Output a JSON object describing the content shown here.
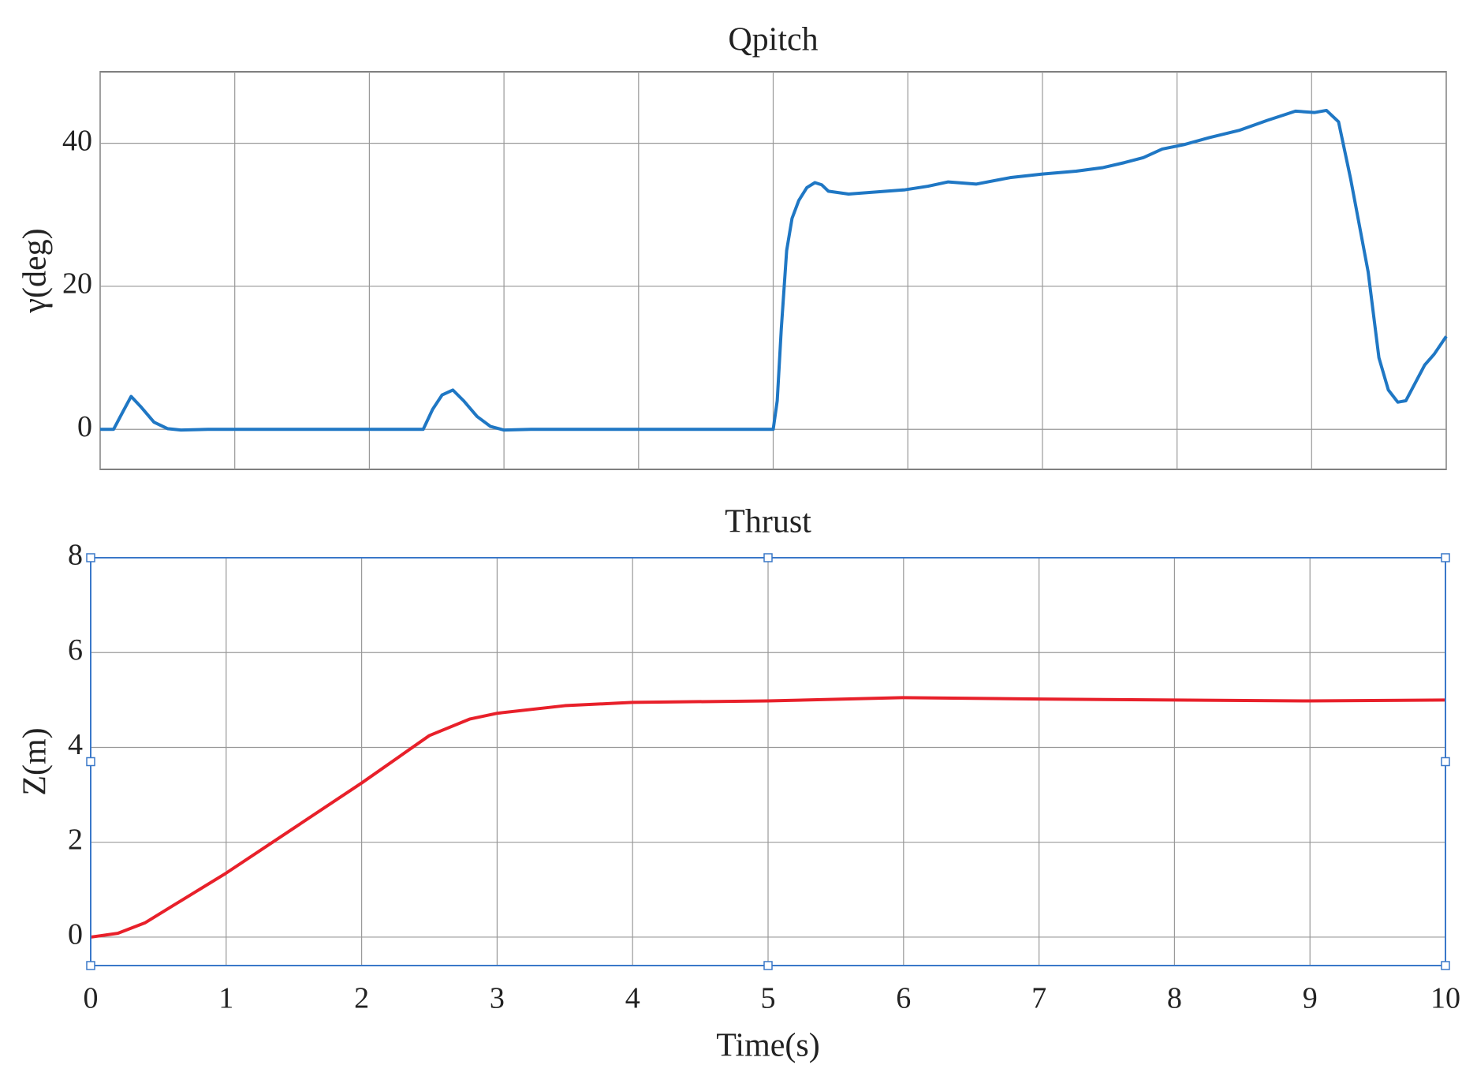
{
  "chart_data": [
    {
      "type": "line",
      "title": "Qpitch",
      "ylabel": "γ(deg)",
      "xlim": [
        0,
        10
      ],
      "xticks": [
        0,
        1,
        2,
        3,
        4,
        5,
        6,
        7,
        8,
        9,
        10
      ],
      "show_xtick_labels": false,
      "ylim": [
        -5.6,
        50
      ],
      "yticks": [
        0,
        20,
        40
      ],
      "grid": true,
      "series": [
        {
          "name": "Qpitch",
          "color": "#1f77c4",
          "x": [
            0,
            0.1,
            0.17,
            0.23,
            0.3,
            0.4,
            0.5,
            0.6,
            0.8,
            1,
            2,
            2.4,
            2.47,
            2.54,
            2.62,
            2.7,
            2.8,
            2.9,
            3.0,
            3.2,
            4,
            5,
            5.03,
            5.06,
            5.1,
            5.14,
            5.19,
            5.25,
            5.31,
            5.36,
            5.41,
            5.56,
            5.84,
            5.98,
            6.15,
            6.3,
            6.51,
            6.76,
            7.0,
            7.25,
            7.45,
            7.61,
            7.75,
            7.89,
            8.05,
            8.24,
            8.46,
            8.67,
            8.8,
            8.88,
            9.02,
            9.11,
            9.2,
            9.29,
            9.42,
            9.5,
            9.57,
            9.64,
            9.7,
            9.77,
            9.84,
            9.91,
            10
          ],
          "values": [
            0,
            0,
            2.5,
            4.6,
            3.2,
            1.0,
            0.1,
            -0.1,
            0,
            0,
            0,
            0,
            2.8,
            4.8,
            5.5,
            4.0,
            1.8,
            0.4,
            -0.1,
            0,
            0,
            0,
            4,
            14,
            25,
            29.5,
            32,
            33.8,
            34.5,
            34.2,
            33.3,
            32.9,
            33.3,
            33.5,
            34.0,
            34.6,
            34.3,
            35.2,
            35.7,
            36.1,
            36.6,
            37.3,
            38.0,
            39.2,
            39.8,
            40.8,
            41.8,
            43.2,
            44.0,
            44.5,
            44.3,
            44.6,
            43,
            35,
            22,
            10,
            5.5,
            3.8,
            4,
            6.5,
            9,
            10.5,
            13
          ]
        }
      ]
    },
    {
      "type": "line",
      "title": "Thrust",
      "xlabel": "Time(s)",
      "ylabel": "Z(m)",
      "xlim": [
        0,
        10
      ],
      "xticks": [
        0,
        1,
        2,
        3,
        4,
        5,
        6,
        7,
        8,
        9,
        10
      ],
      "show_xtick_labels": true,
      "ylim": [
        -0.6,
        8
      ],
      "yticks": [
        0,
        2,
        4,
        6,
        8
      ],
      "grid": true,
      "series": [
        {
          "name": "Thrust",
          "color": "#e8202a",
          "x": [
            0,
            0.2,
            0.4,
            0.6,
            0.8,
            1,
            1.5,
            2,
            2.5,
            2.8,
            3,
            3.5,
            4,
            5,
            6,
            7,
            8,
            9,
            10
          ],
          "values": [
            0,
            0.08,
            0.3,
            0.65,
            1.0,
            1.35,
            2.3,
            3.25,
            4.25,
            4.6,
            4.72,
            4.88,
            4.95,
            4.98,
            5.05,
            5.02,
            5.0,
            4.98,
            5.0
          ]
        }
      ]
    }
  ]
}
